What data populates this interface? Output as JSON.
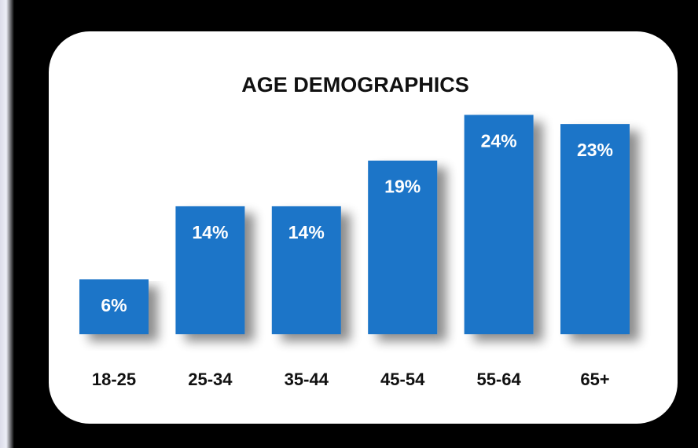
{
  "chart_data": {
    "type": "bar",
    "title": "AGE DEMOGRAPHICS",
    "categories": [
      "18-25",
      "25-34",
      "35-44",
      "45-54",
      "55-64",
      "65+"
    ],
    "values": [
      6,
      14,
      14,
      19,
      24,
      23
    ],
    "data_labels": [
      "6%",
      "14%",
      "14%",
      "19%",
      "24%",
      "23%"
    ],
    "value_unit": "%",
    "xlabel": "",
    "ylabel": "",
    "ylim": [
      0,
      24
    ],
    "grid": false,
    "legend": "none",
    "bar_color": "#1f74c8",
    "background_color": "#000000",
    "panel_color": "#ffffff"
  }
}
